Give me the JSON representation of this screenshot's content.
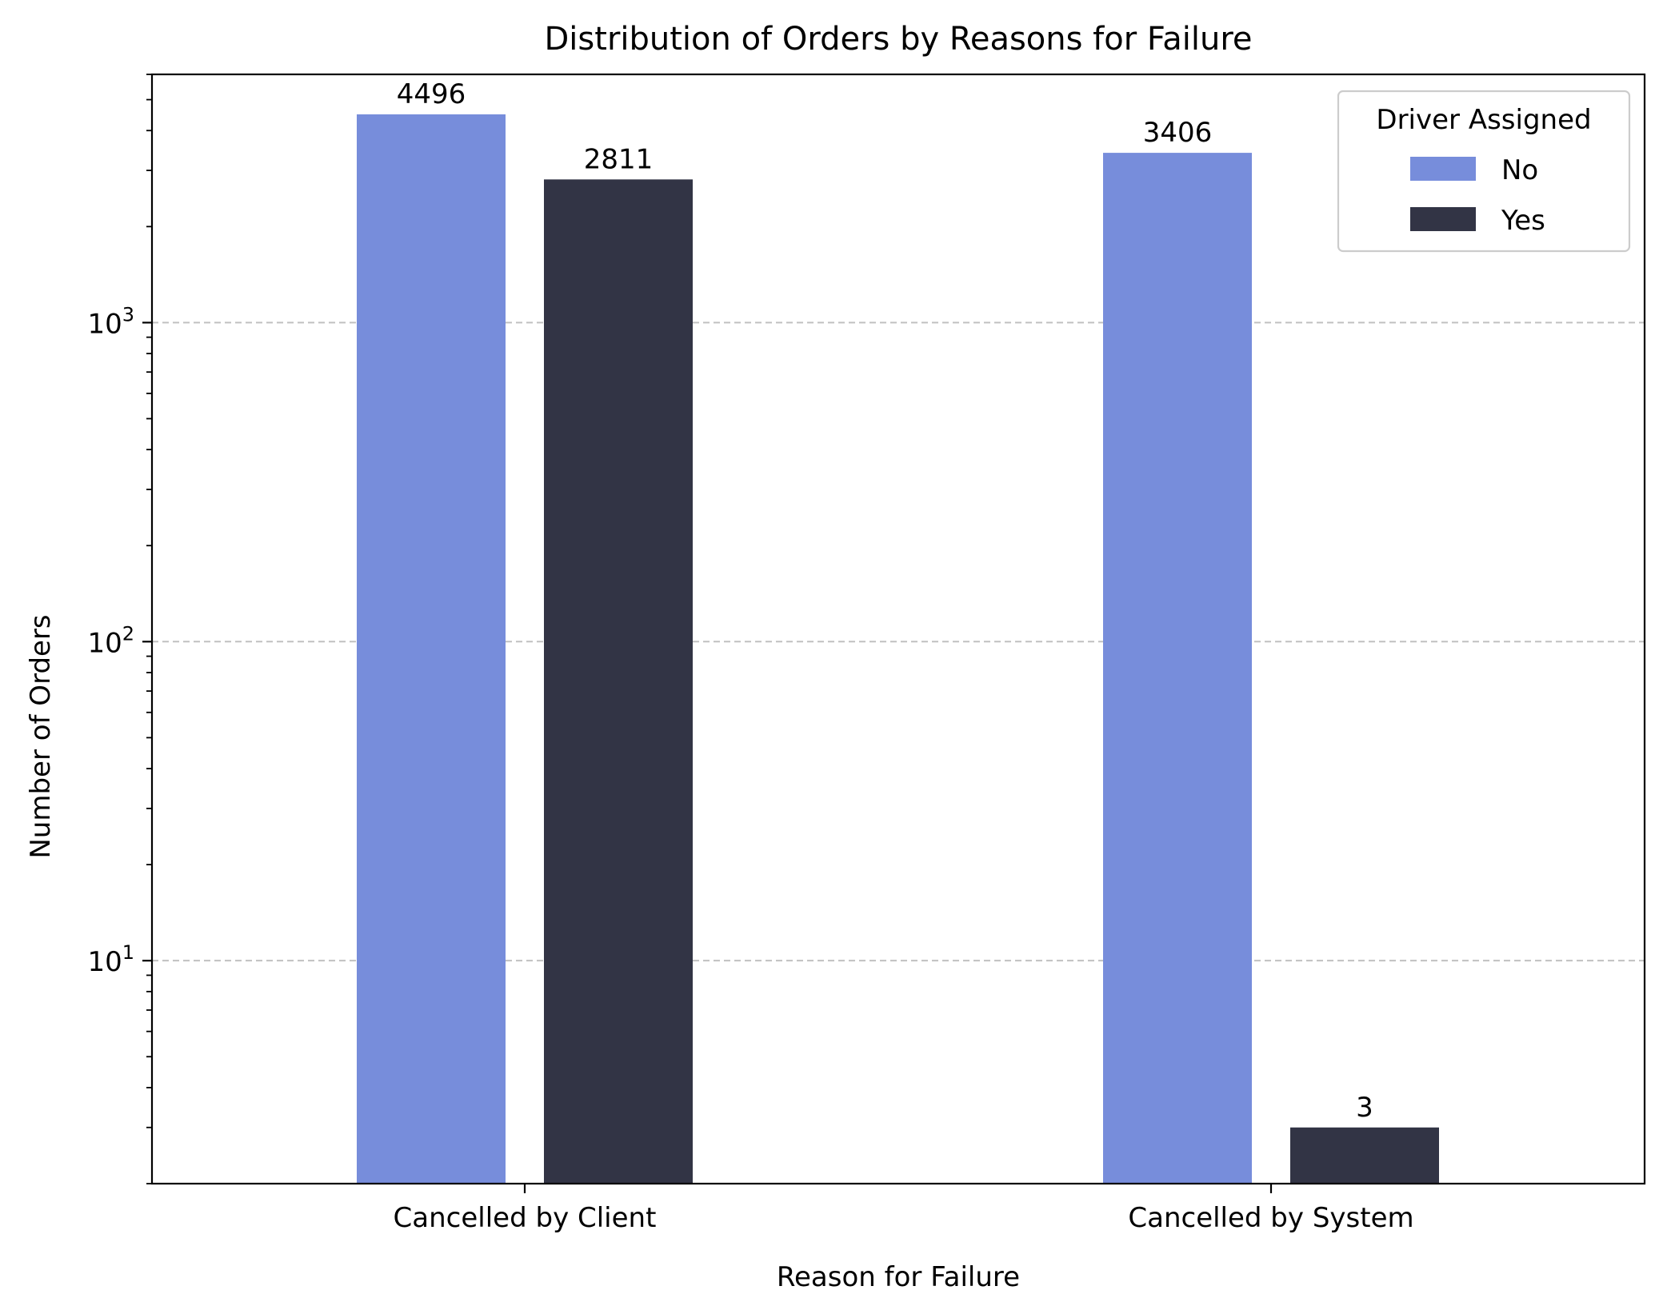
{
  "chart_data": {
    "type": "bar",
    "title": "Distribution of Orders by Reasons for Failure",
    "xlabel": "Reason for Failure",
    "ylabel": "Number of Orders",
    "yscale": "log",
    "ylim": [
      2,
      6000
    ],
    "categories": [
      "Cancelled by Client",
      "Cancelled by System"
    ],
    "series": [
      {
        "name": "No",
        "values": [
          4496,
          3406
        ],
        "color": "#778ddb"
      },
      {
        "name": "Yes",
        "values": [
          2811,
          3
        ],
        "color": "#323445"
      }
    ],
    "data_labels": [
      [
        "4496",
        "3406"
      ],
      [
        "2811",
        "3"
      ]
    ],
    "y_major_ticks": [
      {
        "value": 10,
        "base": "10",
        "exp": "1"
      },
      {
        "value": 100,
        "base": "10",
        "exp": "2"
      },
      {
        "value": 1000,
        "base": "10",
        "exp": "3"
      }
    ],
    "grid": "y-major-dashed",
    "legend": {
      "title": "Driver Assigned",
      "placement": "top-right"
    }
  }
}
